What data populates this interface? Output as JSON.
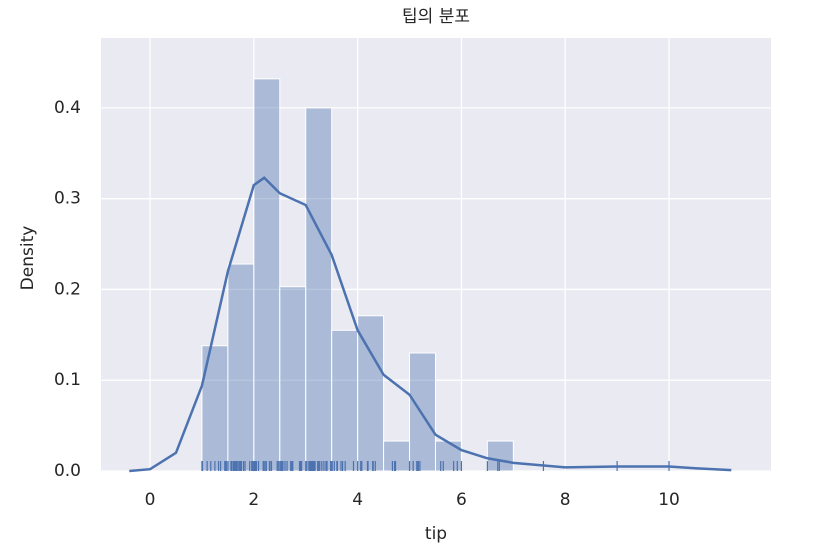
{
  "chart_data": {
    "type": "histogram",
    "title": "팁의 분포",
    "x_label": "tip",
    "y_label": "Density",
    "bins": [
      1,
      1.5,
      2,
      2.5,
      3,
      3.5,
      4,
      4.5,
      5,
      5.5,
      6,
      6.5,
      7
    ],
    "values": [
      0.138,
      0.228,
      0.432,
      0.203,
      0.4,
      0.155,
      0.171,
      0.033,
      0.13,
      0.033,
      0,
      0.033
    ],
    "bar_color": "#4c72b0",
    "bar_opacity": 0.4,
    "kde": {
      "color": "#4c72b0",
      "x": [
        -0.4,
        0,
        0.5,
        1,
        1.5,
        2,
        2.2,
        2.5,
        3,
        3.5,
        4,
        4.5,
        5,
        5.5,
        6,
        6.5,
        7,
        8,
        9,
        10,
        10.5,
        11.2
      ],
      "y": [
        0,
        0.002,
        0.02,
        0.094,
        0.22,
        0.315,
        0.323,
        0.306,
        0.293,
        0.238,
        0.155,
        0.106,
        0.084,
        0.04,
        0.023,
        0.014,
        0.009,
        0.004,
        0.005,
        0.005,
        0.003,
        0.001
      ]
    },
    "rug": [
      1.0,
      1.01,
      1.1,
      1.17,
      1.25,
      1.32,
      1.36,
      1.44,
      1.45,
      1.47,
      1.5,
      1.56,
      1.57,
      1.58,
      1.61,
      1.63,
      1.64,
      1.66,
      1.67,
      1.68,
      1.71,
      1.73,
      1.75,
      1.76,
      1.8,
      1.83,
      1.92,
      1.96,
      1.97,
      1.98,
      2.0,
      2.01,
      2.02,
      2.03,
      2.05,
      2.09,
      2.18,
      2.2,
      2.23,
      2.24,
      2.3,
      2.31,
      2.34,
      2.45,
      2.47,
      2.5,
      2.52,
      2.54,
      2.55,
      2.56,
      2.6,
      2.64,
      2.71,
      2.72,
      2.74,
      2.75,
      2.88,
      2.9,
      2.92,
      3.0,
      3.02,
      3.06,
      3.08,
      3.09,
      3.11,
      3.12,
      3.14,
      3.15,
      3.16,
      3.18,
      3.23,
      3.25,
      3.27,
      3.31,
      3.35,
      3.39,
      3.41,
      3.48,
      3.5,
      3.51,
      3.55,
      3.6,
      3.61,
      3.68,
      3.71,
      3.76,
      3.92,
      4.0,
      4.06,
      4.08,
      4.19,
      4.2,
      4.29,
      4.3,
      4.34,
      4.67,
      4.71,
      4.73,
      5.0,
      5.07,
      5.14,
      5.16,
      5.17,
      5.2,
      5.6,
      5.65,
      5.85,
      5.92,
      6.0,
      6.5,
      6.7,
      6.73,
      7.58,
      9.0,
      10.0
    ],
    "xlim": [
      -0.945,
      11.965
    ],
    "ylim": [
      0,
      0.477
    ],
    "xticks": [
      0,
      2,
      4,
      6,
      8,
      10
    ],
    "yticks": [
      {
        "value": 0,
        "label": "0.0"
      },
      0.1,
      0.2,
      0.3,
      0.4
    ],
    "grid": true,
    "background": "#eaeaf2"
  }
}
